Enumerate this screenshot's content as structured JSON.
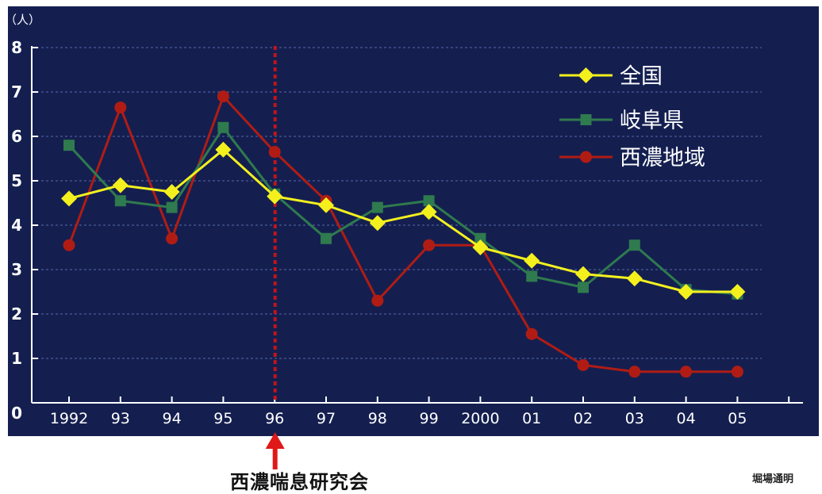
{
  "chart_data": {
    "type": "line",
    "title": "",
    "y_unit": "（人）",
    "xlabel": "",
    "ylabel": "",
    "categories": [
      "1992",
      "93",
      "94",
      "95",
      "96",
      "97",
      "98",
      "99",
      "2000",
      "01",
      "02",
      "03",
      "04",
      "05"
    ],
    "ylim": [
      0,
      8
    ],
    "yticks": [
      "0",
      "1",
      "2",
      "3",
      "4",
      "5",
      "6",
      "7",
      "8"
    ],
    "grid": true,
    "legend_position": "top-right",
    "series": [
      {
        "name": "全国",
        "color": "#f4f01e",
        "marker": "diamond",
        "values": [
          4.6,
          4.9,
          4.75,
          5.7,
          4.65,
          4.45,
          4.05,
          4.3,
          3.5,
          3.2,
          2.9,
          2.8,
          2.5,
          2.5
        ]
      },
      {
        "name": "岐阜県",
        "color": "#2f7a4e",
        "marker": "square",
        "values": [
          5.8,
          4.55,
          4.4,
          6.2,
          4.7,
          3.7,
          4.4,
          4.55,
          3.7,
          2.85,
          2.6,
          3.55,
          2.55,
          2.45
        ]
      },
      {
        "name": "西濃地域",
        "color": "#b01c14",
        "marker": "circle",
        "values": [
          3.55,
          6.65,
          3.7,
          6.9,
          5.65,
          4.55,
          2.3,
          3.55,
          3.55,
          1.55,
          0.85,
          0.7,
          0.7,
          0.7
        ]
      }
    ],
    "marker_line": {
      "category": "96",
      "color": "#c0141a"
    }
  },
  "annotation": {
    "label": "西濃喘息研究会",
    "arrow_color": "#e01818"
  },
  "credit": "堀場通明",
  "colors": {
    "plot_background": "#141f50",
    "grid": "#5a6aa8",
    "axis": "#ffffff"
  }
}
